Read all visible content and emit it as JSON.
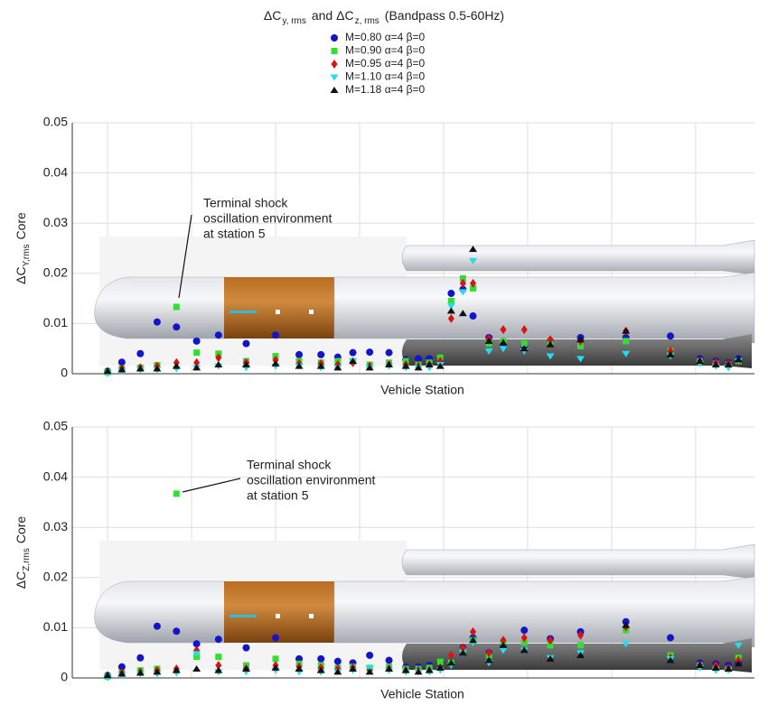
{
  "chart_data": [
    {
      "type": "scatter",
      "title": [
        "ΔC",
        "y, rms",
        "and ΔC",
        "z, rms",
        "(Bandpass 0.5-60Hz)"
      ],
      "ylabel": [
        "ΔC",
        "Y,rms",
        "Core"
      ],
      "xlabel": "Vehicle Station",
      "annotation": [
        "Terminal shock",
        "oscillation environment",
        "at station 5"
      ],
      "xlim": [
        -4.2,
        77
      ],
      "xticks": [
        0,
        10,
        20,
        30,
        40,
        50,
        60,
        70
      ],
      "ylim": [
        0,
        0.05
      ],
      "yticks": [
        0,
        0.01,
        0.02,
        0.03,
        0.04,
        0.05
      ],
      "grid": true,
      "x": [
        0,
        1.7,
        3.9,
        5.9,
        8.2,
        10.6,
        13.2,
        16.5,
        20,
        22.8,
        25.4,
        27.4,
        29.2,
        31.2,
        33.5,
        35.5,
        37,
        38.3,
        39.6,
        40.9,
        42.3,
        43.5,
        45.4,
        47.1,
        49.6,
        52.7,
        56.3,
        61.7,
        67,
        70.5,
        72.4,
        73.9,
        75.1
      ],
      "series": [
        {
          "name": "M=0.80  α=4  β=0",
          "color": "#1414c8",
          "marker": "circle",
          "values": [
            0.0005,
            0.0023,
            0.004,
            0.0103,
            0.0093,
            0.0065,
            0.0077,
            0.006,
            0.0077,
            0.0038,
            0.0038,
            0.0033,
            0.0042,
            0.0043,
            0.0042,
            0.0028,
            0.003,
            0.003,
            0.0028,
            0.016,
            0.0168,
            0.0115,
            0.0072,
            0.0055,
            0.0055,
            0.0065,
            0.0072,
            0.0072,
            0.0075,
            0.003,
            0.0025,
            0.0022,
            0.003
          ]
        },
        {
          "name": "M=0.90  α=4  β=0",
          "color": "#33dd33",
          "marker": "square",
          "values": [
            0.0003,
            0.001,
            0.0012,
            0.0017,
            0.0133,
            0.0042,
            0.004,
            0.0025,
            0.0035,
            0.0025,
            0.0022,
            0.0025,
            0.0025,
            0.0018,
            0.0022,
            0.0025,
            0.0018,
            0.0022,
            0.0032,
            0.0145,
            0.019,
            0.017,
            0.006,
            0.0065,
            0.006,
            0.006,
            0.0055,
            0.0065,
            0.0045,
            0.0025,
            0.002,
            0.0018,
            0.0025
          ]
        },
        {
          "name": "M=0.95  α=4  β=0",
          "color": "#dd1111",
          "marker": "diamond",
          "values": [
            0.0003,
            0.001,
            0.0012,
            0.0015,
            0.0022,
            0.0022,
            0.0032,
            0.0022,
            0.0027,
            0.002,
            0.002,
            0.0018,
            0.0022,
            0.0015,
            0.0018,
            0.0018,
            0.0015,
            0.0018,
            0.0025,
            0.011,
            0.018,
            0.018,
            0.007,
            0.0088,
            0.0088,
            0.0068,
            0.0065,
            0.0085,
            0.0045,
            0.0025,
            0.0022,
            0.002,
            0.0025
          ]
        },
        {
          "name": "M=1.10  α=4  β=0",
          "color": "#22ddee",
          "marker": "triangle-down",
          "values": [
            0,
            0.0005,
            0.0008,
            0.0008,
            0.001,
            0.0012,
            0.0015,
            0.0012,
            0.0015,
            0.0015,
            0.0012,
            0.0012,
            0.0025,
            0.0012,
            0.0015,
            0.0012,
            0.0012,
            0.0012,
            0.0018,
            0.0135,
            0.0163,
            0.0225,
            0.0045,
            0.005,
            0.0045,
            0.0035,
            0.003,
            0.004,
            0.0035,
            0.002,
            0.0015,
            0.0012,
            0.0025
          ]
        },
        {
          "name": "M=1.18  α=4  β=0",
          "color": "#111111",
          "marker": "triangle-up",
          "values": [
            0.0005,
            0.0008,
            0.001,
            0.001,
            0.0015,
            0.0012,
            0.0018,
            0.0018,
            0.002,
            0.0015,
            0.0015,
            0.0012,
            0.0025,
            0.0012,
            0.0018,
            0.0015,
            0.0012,
            0.0018,
            0.0015,
            0.0125,
            0.012,
            0.0248,
            0.0065,
            0.0062,
            0.005,
            0.0058,
            0.0068,
            0.0085,
            0.0038,
            0.0025,
            0.0018,
            0.0018,
            0.0028
          ]
        }
      ]
    },
    {
      "type": "scatter",
      "ylabel": [
        "ΔC",
        "Z,rms",
        "Core"
      ],
      "xlabel": "Vehicle Station",
      "annotation": [
        "Terminal shock",
        "oscillation environment",
        "at station 5"
      ],
      "xlim": [
        -4.2,
        77
      ],
      "xticks": [
        0,
        10,
        20,
        30,
        40,
        50,
        60,
        70
      ],
      "ylim": [
        0,
        0.05
      ],
      "yticks": [
        0,
        0.01,
        0.02,
        0.03,
        0.04,
        0.05
      ],
      "grid": true,
      "x": [
        0,
        1.7,
        3.9,
        5.9,
        8.2,
        10.6,
        13.2,
        16.5,
        20,
        22.8,
        25.4,
        27.4,
        29.2,
        31.2,
        33.5,
        35.5,
        37,
        38.3,
        39.6,
        40.9,
        42.3,
        43.5,
        45.4,
        47.1,
        49.6,
        52.7,
        56.3,
        61.7,
        67,
        70.5,
        72.4,
        73.9,
        75.1
      ],
      "series": [
        {
          "color": "#1414c8",
          "marker": "circle",
          "values": [
            0.0005,
            0.0022,
            0.004,
            0.0103,
            0.0093,
            0.0068,
            0.0077,
            0.006,
            0.008,
            0.0038,
            0.0038,
            0.0033,
            0.003,
            0.0045,
            0.0035,
            0.0022,
            0.0022,
            0.0025,
            0.003,
            0.003,
            0.006,
            0.008,
            0.005,
            0.0065,
            0.0095,
            0.0078,
            0.0092,
            0.0112,
            0.008,
            0.003,
            0.0028,
            0.0025,
            0.003
          ]
        },
        {
          "color": "#33dd33",
          "marker": "square",
          "values": [
            0.0003,
            0.001,
            0.0015,
            0.0018,
            0.0367,
            0.0042,
            0.0042,
            0.0025,
            0.0038,
            0.0028,
            0.0025,
            0.002,
            0.0022,
            0.002,
            0.0022,
            0.0018,
            0.0018,
            0.002,
            0.0032,
            0.003,
            0.0055,
            0.0075,
            0.0045,
            0.007,
            0.007,
            0.0065,
            0.0065,
            0.0095,
            0.0045,
            0.0025,
            0.002,
            0.0018,
            0.004
          ]
        },
        {
          "color": "#dd1111",
          "marker": "diamond",
          "values": [
            0.0003,
            0.001,
            0.0012,
            0.0015,
            0.0018,
            0.0055,
            0.0025,
            0.0018,
            0.0025,
            0.0022,
            0.002,
            0.0018,
            0.002,
            0.0015,
            0.0018,
            0.0015,
            0.0015,
            0.0015,
            0.002,
            0.0045,
            0.006,
            0.0092,
            0.005,
            0.0075,
            0.008,
            0.0075,
            0.0085,
            0.0102,
            0.004,
            0.0025,
            0.0025,
            0.002,
            0.0035
          ]
        },
        {
          "color": "#22ddee",
          "marker": "triangle-down",
          "values": [
            0,
            0.0005,
            0.0008,
            0.0008,
            0.001,
            0.0048,
            0.0012,
            0.0012,
            0.0015,
            0.0012,
            0.0012,
            0.0012,
            0.0015,
            0.002,
            0.0015,
            0.0012,
            0.0012,
            0.0012,
            0.0015,
            0.0025,
            0.005,
            0.007,
            0.003,
            0.0055,
            0.0055,
            0.004,
            0.005,
            0.0068,
            0.0038,
            0.002,
            0.0015,
            0.0015,
            0.0065
          ]
        },
        {
          "color": "#111111",
          "marker": "triangle-up",
          "values": [
            0.0005,
            0.0008,
            0.001,
            0.0012,
            0.0015,
            0.0018,
            0.0015,
            0.0018,
            0.002,
            0.0018,
            0.0015,
            0.0012,
            0.0018,
            0.0012,
            0.0018,
            0.0015,
            0.0012,
            0.0015,
            0.002,
            0.003,
            0.005,
            0.0075,
            0.0035,
            0.0065,
            0.0055,
            0.0038,
            0.0045,
            0.0105,
            0.0035,
            0.0025,
            0.002,
            0.0018,
            0.0028
          ]
        }
      ]
    }
  ]
}
